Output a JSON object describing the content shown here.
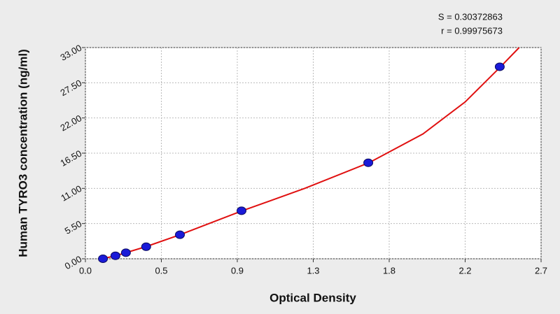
{
  "chart_data": {
    "type": "scatter",
    "x_label": "Optical Density",
    "y_label": "Human TYRO3  concentration (ng/ml)",
    "annotations": [
      "S = 0.30372863",
      "r = 0.99975673"
    ],
    "series": [
      {
        "kind": "points",
        "color": "#1a1ad8",
        "x": [
          0.104,
          0.178,
          0.24,
          0.36,
          0.56,
          0.925,
          1.676,
          2.455
        ],
        "values": [
          0,
          0.47,
          0.94,
          1.88,
          3.75,
          7.5,
          15,
          30
        ]
      },
      {
        "kind": "curve",
        "color": "#e01010",
        "x": [
          0.1,
          0.18,
          0.36,
          0.56,
          0.93,
          1.3,
          1.68,
          2.0,
          2.25,
          2.46,
          2.57
        ],
        "values": [
          0,
          0.47,
          1.9,
          3.75,
          7.5,
          11,
          15,
          19.5,
          24.5,
          30,
          33
        ]
      }
    ],
    "xlim": [
      0,
      2.7
    ],
    "ylim": [
      0,
      33
    ],
    "xticks": [
      {
        "value": 0,
        "label": "0.0"
      },
      {
        "value": 0.45,
        "label": "0.5"
      },
      0.9,
      {
        "value": 1.35,
        "label": "1.3"
      },
      1.8,
      {
        "value": 2.25,
        "label": "2.2"
      },
      2.7
    ],
    "yticks": [
      {
        "value": 0,
        "label": "0.00"
      },
      {
        "value": 5.5,
        "label": "5.50"
      },
      {
        "value": 11,
        "label": "11.00"
      },
      {
        "value": 16.5,
        "label": "16.50"
      },
      {
        "value": 22,
        "label": "22.00"
      },
      {
        "value": 27.5,
        "label": "27.50"
      },
      {
        "value": 33,
        "label": "33.00"
      }
    ],
    "grid": true
  }
}
